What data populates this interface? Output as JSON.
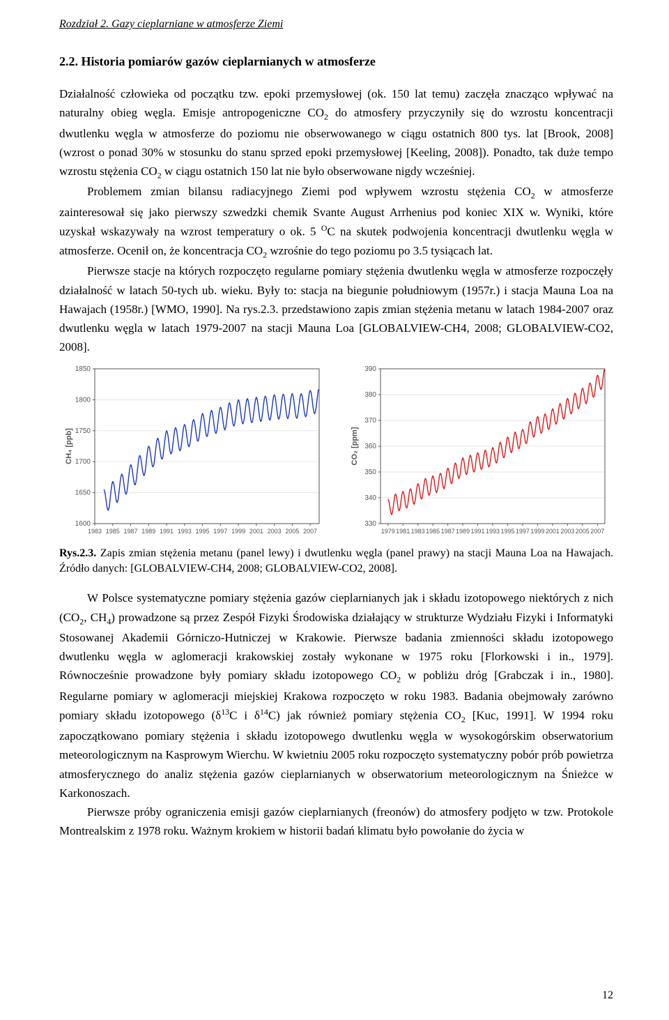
{
  "running_header": "Rozdział 2. Gazy cieplarniane w atmosferze Ziemi",
  "section_title": "2.2. Historia pomiarów gazów cieplarnianych w atmosferze",
  "para1a": "Działalność człowieka od początku tzw. epoki przemysłowej (ok. 150 lat temu) zaczęła znacząco wpływać na naturalny obieg węgla. Emisje antropogeniczne CO",
  "para1b": " do atmosfery przyczyniły się do wzrostu koncentracji dwutlenku węgla w atmosferze do poziomu nie obserwowanego w ciągu ostatnich 800 tys. lat [Brook, 2008] (wzrost o ponad 30% w stosunku do stanu sprzed epoki przemysłowej [Keeling, 2008]). Ponadto, tak duże tempo wzrostu stężenia CO",
  "para1c": " w ciągu ostatnich 150 lat nie było obserwowane nigdy wcześniej.",
  "para2a": "Problemem zmian bilansu radiacyjnego Ziemi pod wpływem wzrostu stężenia CO",
  "para2b": " w atmosferze zainteresował się jako pierwszy szwedzki chemik Svante August Arrhenius pod koniec XIX w. Wyniki, które uzyskał wskazywały na wzrost temperatury o ok. 5 ",
  "para2c": "C na skutek podwojenia koncentracji dwutlenku węgla w atmosferze. Ocenił on, że koncentracja CO",
  "para2d": " wzrośnie do  tego poziomu po 3.5 tysiącach lat.",
  "para3": "Pierwsze stacje na których rozpoczęto regularne pomiary stężenia dwutlenku węgla w atmosferze rozpoczęły działalność w latach 50-tych ub. wieku. Były to: stacja na biegunie południowym (1957r.) i stacja Mauna Loa na Hawajach (1958r.) [WMO, 1990]. Na rys.2.3. przedstawiono zapis zmian stężenia metanu w latach 1984-2007 oraz dwutlenku węgla w latach 1979-2007 na stacji Mauna Loa [GLOBALVIEW-CH4, 2008; GLOBALVIEW-CO2, 2008].",
  "fig_caption_bold": "Rys.2.3.",
  "fig_caption_rest": " Zapis zmian stężenia metanu (panel lewy) i dwutlenku węgla (panel prawy) na stacji Mauna Loa na Hawajach. Źródło danych: [GLOBALVIEW-CH4, 2008; GLOBALVIEW-CO2, 2008].",
  "para4a": "W Polsce systematyczne pomiary stężenia gazów cieplarnianych jak i składu izotopowego niektórych z nich (CO",
  "para4b": ", CH",
  "para4c": ") prowadzone są przez Zespół Fizyki Środowiska działający w strukturze Wydziału Fizyki i Informatyki Stosowanej Akademii Górniczo-Hutniczej w Krakowie. Pierwsze badania zmienności składu izotopowego dwutlenku węgla w aglomeracji krakowskiej zostały wykonane w 1975 roku [Florkowski i in., 1979]. Równocześnie prowadzone były pomiary składu izotopowego CO",
  "para4d": " w pobliżu dróg [Grabczak i in., 1980]. Regularne pomiary w aglomeracji miejskiej Krakowa rozpoczęto w roku 1983. Badania obejmowały zarówno pomiary składu izotopowego (δ",
  "para4e": "C i δ",
  "para4f": "C) jak również pomiary stężenia CO",
  "para4g": " [Kuc, 1991]. W 1994 roku zapoczątkowano pomiary stężenia i składu izotopowego dwutlenku węgla w wysokogórskim obserwatorium meteorologicznym na Kasprowym Wierchu. W kwietniu 2005 roku rozpoczęto systematyczny pobór prób powietrza atmosferycznego do analiz stężenia gazów cieplarnianych w obserwatorium meteorologicznym na Śnieżce w Karkonoszach.",
  "para5": "Pierwsze próby ograniczenia emisji gazów cieplarnianych (freonów) do atmosfery podjęto w tzw. Protokole Montrealskim z 1978 roku. Ważnym krokiem w historii badań klimatu było powołanie do życia w",
  "page_number": "12",
  "chart_left": {
    "type": "line",
    "ylabel": "CH₄ [ppb]",
    "line_color": "#1a38c9",
    "axis_color": "#555555",
    "grid_color": "#e6e6e6",
    "background_color": "#ffffff",
    "label_fontsize": 10,
    "ylim": [
      1600,
      1850
    ],
    "ytick_step": 50,
    "xlim": [
      1983,
      2008
    ],
    "xticks": [
      1983,
      1985,
      1987,
      1989,
      1991,
      1993,
      1995,
      1997,
      1999,
      2001,
      2003,
      2005,
      2007
    ],
    "series_years": [
      1984,
      1985,
      1986,
      1987,
      1988,
      1989,
      1990,
      1991,
      1992,
      1993,
      1994,
      1995,
      1996,
      1997,
      1998,
      1999,
      2000,
      2001,
      2002,
      2003,
      2004,
      2005,
      2006,
      2007
    ],
    "series_values": [
      1635,
      1648,
      1660,
      1675,
      1690,
      1705,
      1718,
      1730,
      1735,
      1740,
      1748,
      1758,
      1763,
      1768,
      1775,
      1780,
      1782,
      1784,
      1786,
      1788,
      1789,
      1790,
      1790,
      1795
    ],
    "seasonal_amplitude": 20
  },
  "chart_right": {
    "type": "line",
    "ylabel": "CO₂ [ppm]",
    "line_color": "#e01818",
    "axis_color": "#555555",
    "grid_color": "#e6e6e6",
    "background_color": "#ffffff",
    "label_fontsize": 10,
    "ylim": [
      330,
      390
    ],
    "ytick_step": 10,
    "xlim": [
      1978,
      2008
    ],
    "xticks": [
      1979,
      1981,
      1983,
      1985,
      1987,
      1989,
      1991,
      1993,
      1995,
      1997,
      1999,
      2001,
      2003,
      2005,
      2007
    ],
    "series_years": [
      1979,
      1980,
      1981,
      1982,
      1983,
      1984,
      1985,
      1986,
      1987,
      1988,
      1989,
      1990,
      1991,
      1992,
      1993,
      1994,
      1995,
      1996,
      1997,
      1998,
      1999,
      2000,
      2001,
      2002,
      2003,
      2004,
      2005,
      2006,
      2007
    ],
    "series_values": [
      336,
      338,
      339,
      340,
      342,
      344,
      345,
      346,
      348,
      350,
      352,
      353,
      354,
      355,
      356,
      358,
      360,
      362,
      363,
      366,
      368,
      369,
      371,
      373,
      375,
      377,
      379,
      381,
      384
    ],
    "seasonal_amplitude": 3.5
  }
}
